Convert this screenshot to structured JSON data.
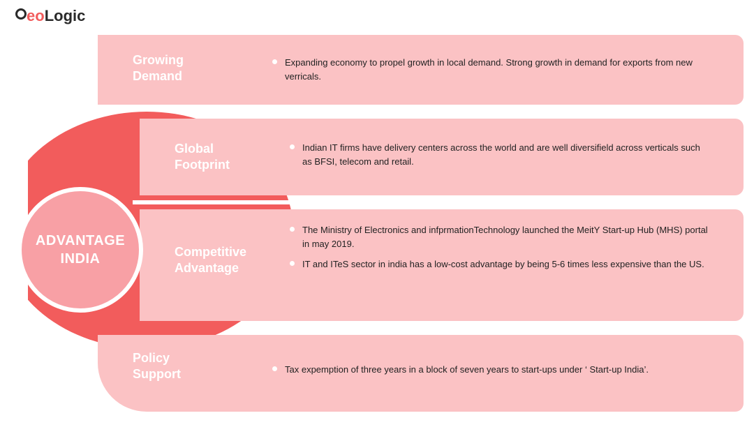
{
  "brand": {
    "name_part1": "eo",
    "name_part2": "Logic"
  },
  "hub_title": "ADVANTAGE INDIA",
  "colors": {
    "accent": "#f25c5c",
    "bar": "#fbc2c4",
    "hub": "#f8a0a5",
    "text_light": "#ffffff",
    "text_dark": "#222222",
    "bullet": "#ffffff",
    "background": "#ffffff"
  },
  "rows": [
    {
      "title": "Growing\nDemand",
      "bullets": [
        "Expanding economy to propel growth in local demand. Strong growth in demand for exports from new verricals."
      ]
    },
    {
      "title": "Global\nFootprint",
      "bullets": [
        "Indian IT firms have delivery centers across the world and are well diversifield across verticals such as BFSI, telecom  and retail."
      ]
    },
    {
      "title": "Competitive\nAdvantage",
      "bullets": [
        "The Ministry of Electronics and infprmationTechnology launched the MeitY Start-up Hub (MHS) portal in may 2019.",
        "IT and ITeS sector in india has a low-cost advantage by being 5-6 times less expensive than the US."
      ]
    },
    {
      "title": "Policy\nSupport",
      "bullets": [
        "Tax expemption of three years in a block of seven years to start-ups under ‘ Start-up India’."
      ]
    }
  ]
}
